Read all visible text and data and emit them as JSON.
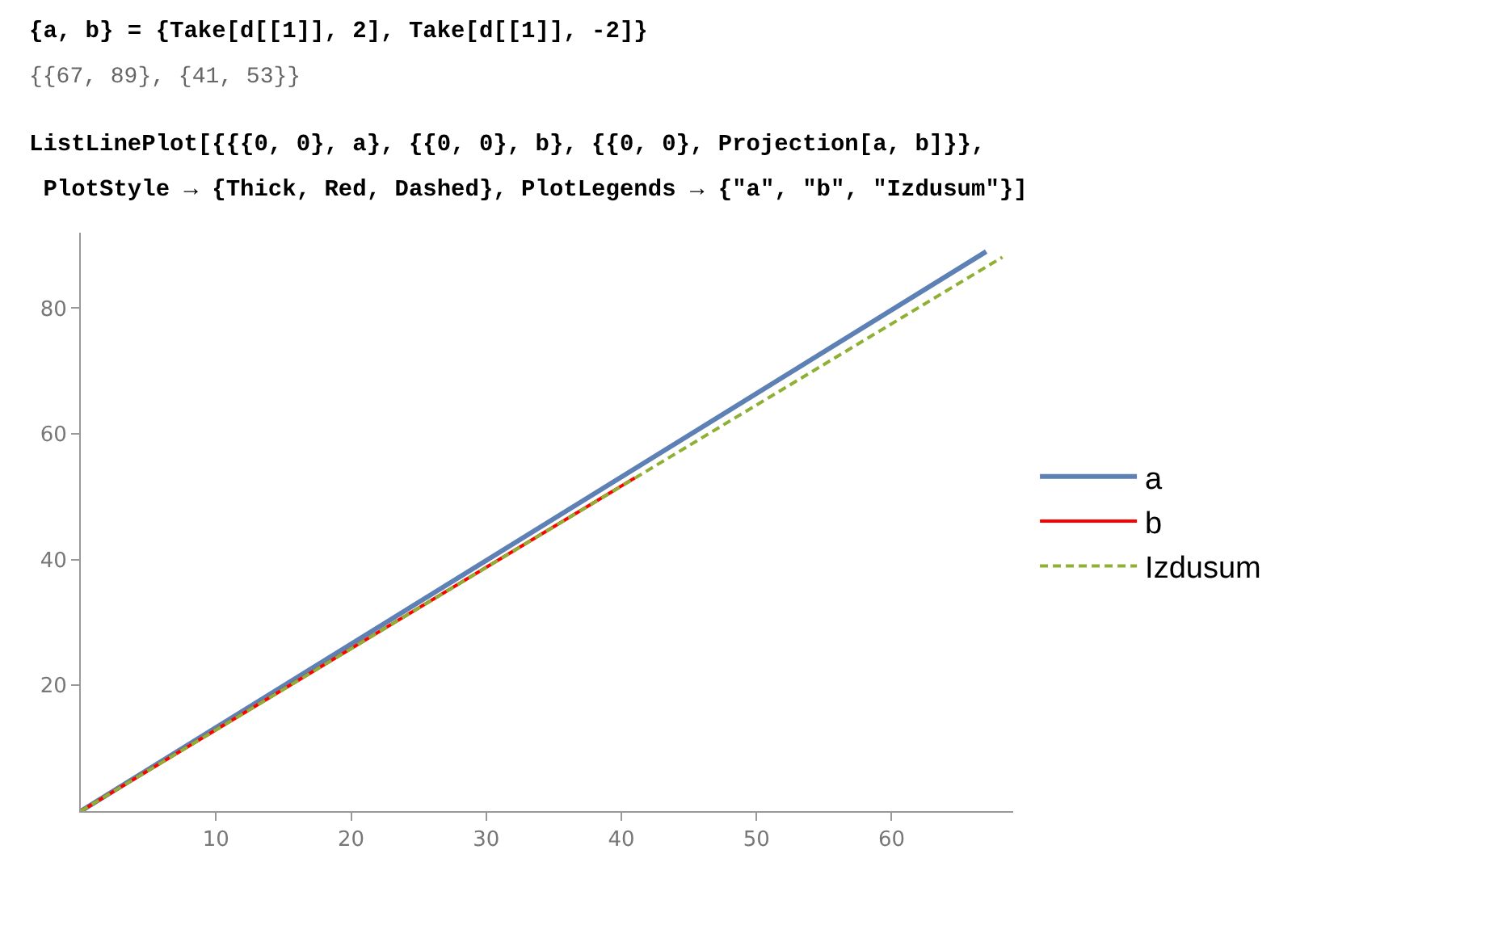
{
  "chart_data": {
    "type": "line",
    "annotations": [
      "{a, b} = {Take[d[[1]], 2], Take[d[[1]], -2]}",
      "{{67, 89}, {41, 53}}",
      "ListLinePlot[{{{0, 0}, a}, {{0, 0}, b}, {{0, 0}, Projection[a, b]}},",
      " PlotStyle → {Thick, Red, Dashed}, PlotLegends → {\"a\", \"b\", \"Izdusum\"}]"
    ],
    "series": [
      {
        "name": "a",
        "color": "#5e81b5",
        "x": [
          0,
          67
        ],
        "values": [
          0,
          89
        ],
        "line_style": "solid"
      },
      {
        "name": "b",
        "color": "#ff0000",
        "x": [
          0,
          41
        ],
        "values": [
          0,
          53
        ],
        "line_style": "solid"
      },
      {
        "name": "Izdusum",
        "color": "#8fb032",
        "x": [
          0,
          68.2
        ],
        "values": [
          0,
          88.1
        ],
        "line_style": "dashed"
      }
    ],
    "xlim": [
      0,
      69
    ],
    "xticks": [
      10,
      20,
      30,
      40,
      50,
      60
    ],
    "ylim": [
      0,
      92
    ],
    "yticks": [
      20,
      40,
      60,
      80
    ],
    "grid": false,
    "legend": "right",
    "marker": "none"
  }
}
